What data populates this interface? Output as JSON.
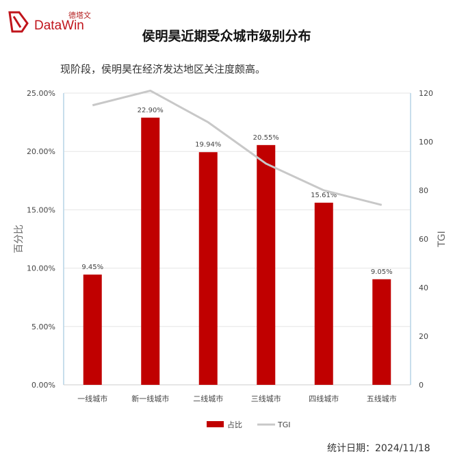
{
  "header": {
    "logo_cn": "德塔文",
    "logo_en": "DataWin",
    "title": "侯明昊近期受众城市级别分布",
    "subtitle": "现阶段，侯明昊在经济发达地区关注度颇高。"
  },
  "footer": {
    "date_text": "统计日期：2024/11/18"
  },
  "chart_data": {
    "type": "bar",
    "categories": [
      "一线城市",
      "新一线城市",
      "二线城市",
      "三线城市",
      "四线城市",
      "五线城市"
    ],
    "series": [
      {
        "name": "占比",
        "type": "bar",
        "axis": "left",
        "values": [
          9.45,
          22.9,
          19.94,
          20.55,
          15.61,
          9.05
        ],
        "labels": [
          "9.45%",
          "22.90%",
          "19.94%",
          "20.55%",
          "15.61%",
          "9.05%"
        ]
      },
      {
        "name": "TGI",
        "type": "line",
        "axis": "right",
        "values": [
          115,
          121,
          108,
          91,
          80,
          74
        ]
      }
    ],
    "ylabel": "百分比",
    "y2label": "TGI",
    "ylim": [
      0,
      25
    ],
    "yticks": [
      "0.00%",
      "5.00%",
      "10.00%",
      "15.00%",
      "20.00%",
      "25.00%"
    ],
    "y2lim": [
      0,
      120
    ],
    "y2ticks": [
      "0",
      "20",
      "40",
      "60",
      "80",
      "100",
      "120"
    ],
    "grid": true,
    "legend_position": "bottom",
    "colors": {
      "bar": "#c00000",
      "line": "#c8c8c8"
    }
  }
}
